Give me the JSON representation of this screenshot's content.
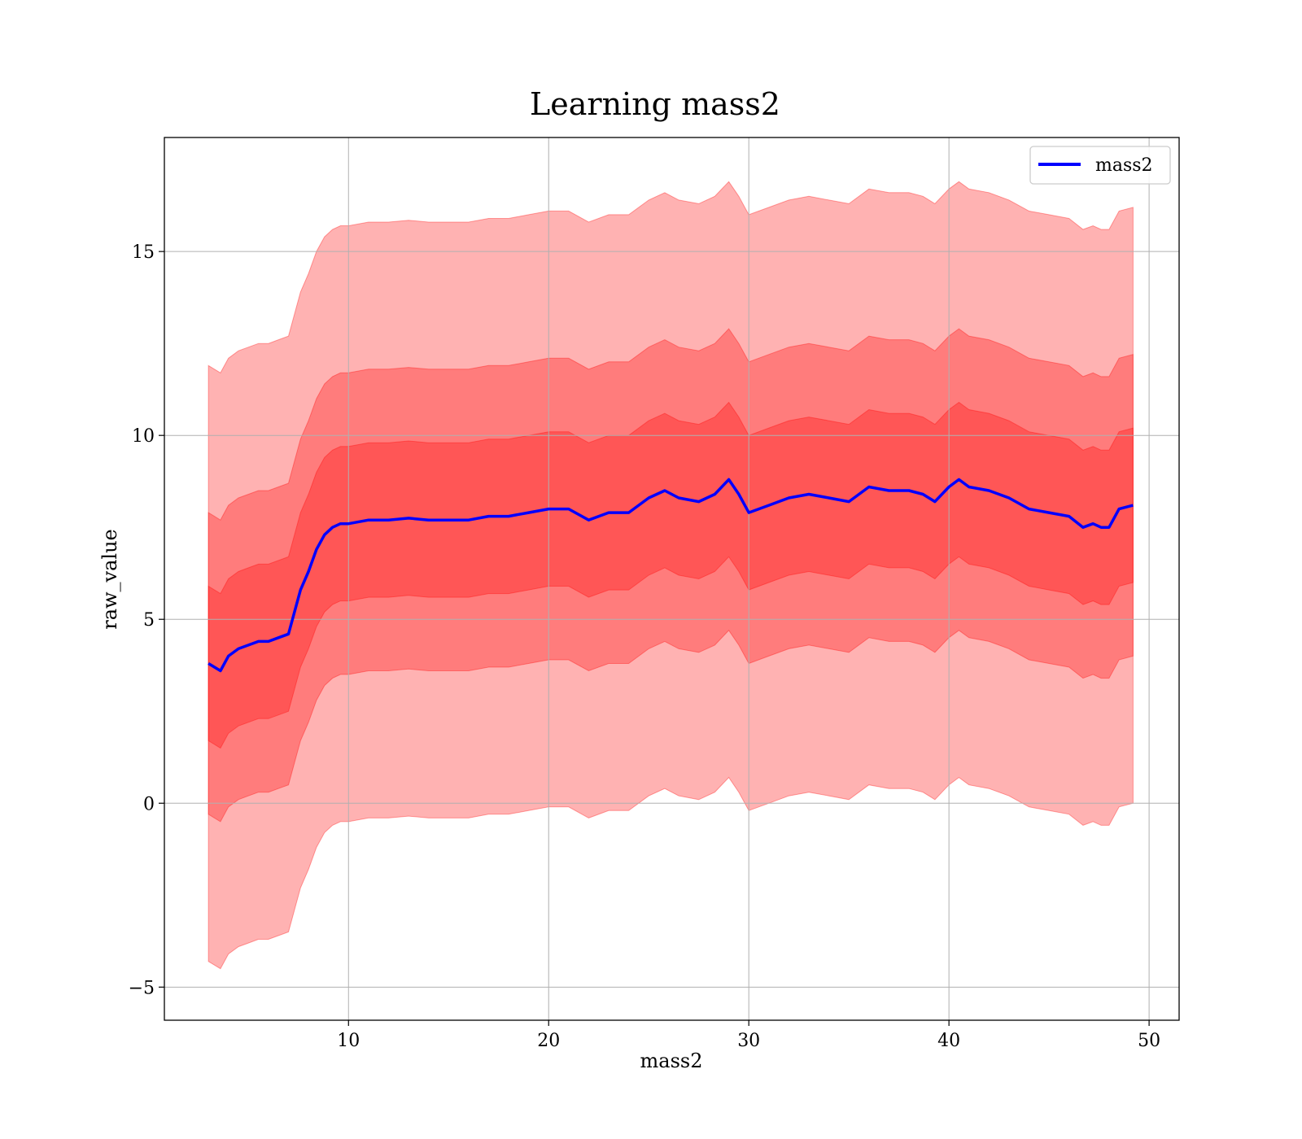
{
  "chart_data": {
    "type": "line",
    "title": "Learning mass2",
    "xlabel": "mass2",
    "ylabel": "raw_value",
    "xlim": [
      0.8,
      51.5
    ],
    "ylim": [
      -5.9,
      18.1
    ],
    "x_ticks": [
      10,
      20,
      30,
      40,
      50
    ],
    "y_ticks": [
      -5,
      0,
      5,
      10,
      15
    ],
    "x_tick_labels": [
      "10",
      "20",
      "30",
      "40",
      "50"
    ],
    "y_tick_labels": [
      "−5",
      "0",
      "5",
      "10",
      "15"
    ],
    "grid": true,
    "legend_position": "top-right",
    "colors": {
      "line": "#0000ff",
      "band": "#ff0000"
    },
    "band_offsets": [
      2.1,
      4.1,
      8.1
    ],
    "series": [
      {
        "name": "mass2",
        "x": [
          3.0,
          3.3,
          3.6,
          4.0,
          4.5,
          5.0,
          5.5,
          6.0,
          6.5,
          7.0,
          7.3,
          7.6,
          8.0,
          8.4,
          8.8,
          9.2,
          9.6,
          10.0,
          11.0,
          12.0,
          13.0,
          14.0,
          15.0,
          16.0,
          17.0,
          18.0,
          19.0,
          20.0,
          21.0,
          22.0,
          23.0,
          24.0,
          25.0,
          25.8,
          26.5,
          27.5,
          28.3,
          29.0,
          29.5,
          30.0,
          31.0,
          32.0,
          33.0,
          34.0,
          35.0,
          36.0,
          37.0,
          38.0,
          38.7,
          39.3,
          40.0,
          40.5,
          41.0,
          42.0,
          43.0,
          44.0,
          45.0,
          46.0,
          46.7,
          47.2,
          47.6,
          48.0,
          48.5,
          49.2
        ],
        "y": [
          3.8,
          3.7,
          3.6,
          4.0,
          4.2,
          4.3,
          4.4,
          4.4,
          4.5,
          4.6,
          5.2,
          5.8,
          6.3,
          6.9,
          7.3,
          7.5,
          7.6,
          7.6,
          7.7,
          7.7,
          7.75,
          7.7,
          7.7,
          7.7,
          7.8,
          7.8,
          7.9,
          8.0,
          8.0,
          7.7,
          7.9,
          7.9,
          8.3,
          8.5,
          8.3,
          8.2,
          8.4,
          8.8,
          8.4,
          7.9,
          8.1,
          8.3,
          8.4,
          8.3,
          8.2,
          8.6,
          8.5,
          8.5,
          8.4,
          8.2,
          8.6,
          8.8,
          8.6,
          8.5,
          8.3,
          8.0,
          7.9,
          7.8,
          7.5,
          7.6,
          7.5,
          7.5,
          8.0,
          8.1
        ]
      }
    ]
  }
}
